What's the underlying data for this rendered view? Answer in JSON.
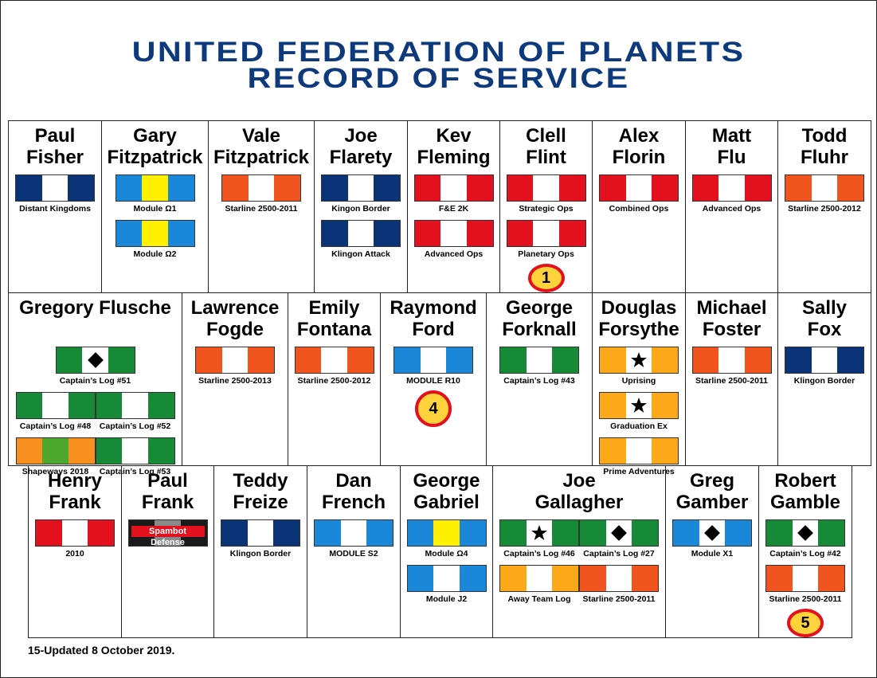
{
  "header": {
    "title": [
      "UNITED FEDERATION OF PLANETS",
      "RECORD OF SERVICE"
    ]
  },
  "rows": [
    {
      "cells": [
        {
          "name": [
            "Paul",
            "Fisher"
          ],
          "ribbon_rows": [
            [
              {
                "label": "Distant Kingdoms",
                "stripes": [
                  "#0b3476",
                  "#ffffff",
                  "#0b3476"
                ]
              }
            ]
          ]
        },
        {
          "name": [
            "Gary",
            "Fitzpatrick"
          ],
          "ribbon_rows": [
            [
              {
                "label": "Module Ω1",
                "stripes": [
                  "#1a87d9",
                  "#fff000",
                  "#1a87d9"
                ]
              }
            ],
            [
              {
                "label": "Module Ω2",
                "stripes": [
                  "#1a87d9",
                  "#fff000",
                  "#1a87d9"
                ]
              }
            ]
          ]
        },
        {
          "name": [
            "Vale",
            "Fitzpatrick"
          ],
          "ribbon_rows": [
            [
              {
                "label": "Starline 2500-2011",
                "stripes": [
                  "#f0541f",
                  "#ffffff",
                  "#f0541f"
                ]
              }
            ]
          ]
        },
        {
          "name": [
            "Joe",
            "Flarety"
          ],
          "ribbon_rows": [
            [
              {
                "label": "Kingon Border",
                "stripes": [
                  "#0b3476",
                  "#ffffff",
                  "#0b3476"
                ]
              }
            ],
            [
              {
                "label": "Klingon Attack",
                "stripes": [
                  "#0b3476",
                  "#ffffff",
                  "#0b3476"
                ]
              }
            ]
          ]
        },
        {
          "name": [
            "Kev",
            "Fleming"
          ],
          "ribbon_rows": [
            [
              {
                "label": "F&E 2K",
                "stripes": [
                  "#e3101d",
                  "#ffffff",
                  "#e3101d"
                ]
              }
            ],
            [
              {
                "label": "Advanced Ops",
                "stripes": [
                  "#e3101d",
                  "#ffffff",
                  "#e3101d"
                ]
              }
            ]
          ]
        },
        {
          "name": [
            "Clell",
            "Flint"
          ],
          "ribbon_rows": [
            [
              {
                "label": "Strategic Ops",
                "stripes": [
                  "#e3101d",
                  "#ffffff",
                  "#e3101d"
                ]
              }
            ],
            [
              {
                "label": "Planetary Ops",
                "stripes": [
                  "#e3101d",
                  "#ffffff",
                  "#e3101d"
                ]
              }
            ]
          ],
          "badge": "1"
        },
        {
          "name": [
            "Alex",
            "Florin"
          ],
          "ribbon_rows": [
            [
              {
                "label": "Combined Ops",
                "stripes": [
                  "#e3101d",
                  "#ffffff",
                  "#e3101d"
                ]
              }
            ]
          ]
        },
        {
          "name": [
            "Matt",
            "Flu"
          ],
          "ribbon_rows": [
            [
              {
                "label": "Advanced Ops",
                "stripes": [
                  "#e3101d",
                  "#ffffff",
                  "#e3101d"
                ]
              }
            ]
          ]
        },
        {
          "name": [
            "Todd",
            "Fluhr"
          ],
          "ribbon_rows": [
            [
              {
                "label": "Starline 2500-2012",
                "stripes": [
                  "#f0541f",
                  "#ffffff",
                  "#f0541f"
                ]
              }
            ]
          ]
        }
      ]
    },
    {
      "cells": [
        {
          "name": [
            "Gregory Flusche"
          ],
          "ribbon_rows": [
            [
              {
                "label": "Captain’s Log #51",
                "stripes": [
                  "#168a36",
                  "#ffffff",
                  "#168a36"
                ],
                "device": "diamond"
              }
            ],
            [
              {
                "label": "Captain’s Log #48",
                "stripes": [
                  "#168a36",
                  "#ffffff",
                  "#168a36"
                ]
              },
              {
                "label": "Captain’s Log #52",
                "stripes": [
                  "#168a36",
                  "#ffffff",
                  "#168a36"
                ]
              }
            ],
            [
              {
                "label": "Shapeways 2018",
                "stripes": [
                  "#f7901e",
                  "#4ea72e",
                  "#f7901e"
                ]
              },
              {
                "label": "Captain’s Log #53",
                "stripes": [
                  "#168a36",
                  "#ffffff",
                  "#168a36"
                ]
              }
            ]
          ]
        },
        {
          "name": [
            "Lawrence",
            "Fogde"
          ],
          "ribbon_rows": [
            [
              {
                "label": "Starline 2500-2013",
                "stripes": [
                  "#f0541f",
                  "#ffffff",
                  "#f0541f"
                ]
              }
            ]
          ]
        },
        {
          "name": [
            "Emily",
            "Fontana"
          ],
          "ribbon_rows": [
            [
              {
                "label": "Starline 2500-2012",
                "stripes": [
                  "#f0541f",
                  "#ffffff",
                  "#f0541f"
                ]
              }
            ]
          ]
        },
        {
          "name": [
            "Raymond",
            "Ford"
          ],
          "ribbon_rows": [
            [
              {
                "label": "MODULE R10",
                "stripes": [
                  "#1a87d9",
                  "#ffffff",
                  "#1a87d9"
                ]
              }
            ]
          ],
          "badge": "4"
        },
        {
          "name": [
            "George",
            "Forknall"
          ],
          "ribbon_rows": [
            [
              {
                "label": "Captain’s Log #43",
                "stripes": [
                  "#168a36",
                  "#ffffff",
                  "#168a36"
                ]
              }
            ]
          ]
        },
        {
          "name": [
            "Douglas",
            "Forsythe"
          ],
          "ribbon_rows": [
            [
              {
                "label": "Uprising",
                "stripes": [
                  "#fba919",
                  "#ffffff",
                  "#fba919"
                ],
                "device": "star"
              }
            ],
            [
              {
                "label": "Graduation Ex",
                "stripes": [
                  "#fba919",
                  "#ffffff",
                  "#fba919"
                ],
                "device": "star"
              }
            ],
            [
              {
                "label": "Prime Adventures",
                "stripes": [
                  "#fba919",
                  "#ffffff",
                  "#fba919"
                ]
              }
            ]
          ]
        },
        {
          "name": [
            "Michael",
            "Foster"
          ],
          "ribbon_rows": [
            [
              {
                "label": "Starline 2500-2011",
                "stripes": [
                  "#f0541f",
                  "#ffffff",
                  "#f0541f"
                ]
              }
            ]
          ]
        },
        {
          "name": [
            "Sally",
            "Fox"
          ],
          "ribbon_rows": [
            [
              {
                "label": "Klingon Border",
                "stripes": [
                  "#0b3476",
                  "#ffffff",
                  "#0b3476"
                ]
              }
            ]
          ]
        }
      ]
    },
    {
      "cells": [
        {
          "name": [
            "Henry",
            "Frank"
          ],
          "ribbon_rows": [
            [
              {
                "label": "2010",
                "stripes": [
                  "#e3101d",
                  "#ffffff",
                  "#e3101d"
                ]
              }
            ]
          ]
        },
        {
          "name": [
            "Paul",
            "Frank"
          ],
          "ribbon_rows": [
            [
              {
                "banner": "Spambot Defense",
                "stripes": [
                  "#1a1a1a",
                  "#8a8a8a",
                  "#1a1a1a"
                ]
              }
            ]
          ]
        },
        {
          "name": [
            "Teddy",
            "Freize"
          ],
          "ribbon_rows": [
            [
              {
                "label": "Klingon Border",
                "stripes": [
                  "#0b3476",
                  "#ffffff",
                  "#0b3476"
                ]
              }
            ]
          ]
        },
        {
          "name": [
            "Dan",
            "French"
          ],
          "ribbon_rows": [
            [
              {
                "label": "MODULE S2",
                "stripes": [
                  "#1a87d9",
                  "#ffffff",
                  "#1a87d9"
                ]
              }
            ]
          ]
        },
        {
          "name": [
            "George",
            "Gabriel"
          ],
          "ribbon_rows": [
            [
              {
                "label": "Module Ω4",
                "stripes": [
                  "#1a87d9",
                  "#fff000",
                  "#1a87d9"
                ]
              }
            ],
            [
              {
                "label": "Module J2",
                "stripes": [
                  "#1a87d9",
                  "#ffffff",
                  "#1a87d9"
                ]
              }
            ]
          ]
        },
        {
          "name": [
            "Joe",
            "Gallagher"
          ],
          "ribbon_rows": [
            [
              {
                "label": "Captain’s Log #46",
                "stripes": [
                  "#168a36",
                  "#ffffff",
                  "#168a36"
                ],
                "device": "star"
              },
              {
                "label": "Captain’s Log #27",
                "stripes": [
                  "#168a36",
                  "#ffffff",
                  "#168a36"
                ],
                "device": "diamond"
              }
            ],
            [
              {
                "label": "Away Team Log",
                "stripes": [
                  "#fba919",
                  "#ffffff",
                  "#fba919"
                ]
              },
              {
                "label": "Starline 2500-2011",
                "stripes": [
                  "#f0541f",
                  "#ffffff",
                  "#f0541f"
                ]
              }
            ]
          ]
        },
        {
          "name": [
            "Greg",
            "Gamber"
          ],
          "ribbon_rows": [
            [
              {
                "label": "Module X1",
                "stripes": [
                  "#1a87d9",
                  "#ffffff",
                  "#1a87d9"
                ],
                "device": "diamond"
              }
            ]
          ]
        },
        {
          "name": [
            "Robert",
            "Gamble"
          ],
          "ribbon_rows": [
            [
              {
                "label": "Captain’s Log #42",
                "stripes": [
                  "#168a36",
                  "#ffffff",
                  "#168a36"
                ],
                "device": "diamond"
              }
            ],
            [
              {
                "label": "Starline 2500-2011",
                "stripes": [
                  "#f0541f",
                  "#ffffff",
                  "#f0541f"
                ]
              }
            ]
          ],
          "badge": "5"
        }
      ]
    }
  ],
  "footer": {
    "note": "15-Updated 8 October 2019."
  }
}
